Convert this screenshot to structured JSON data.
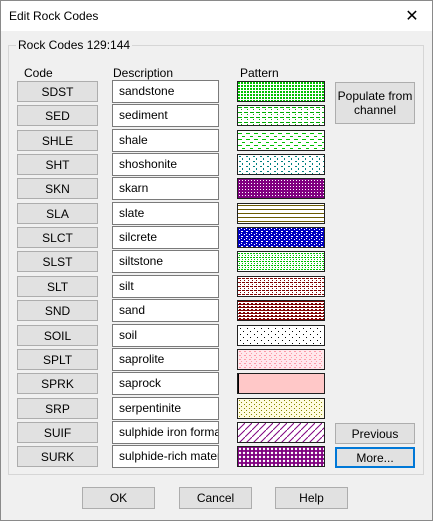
{
  "window": {
    "title": "Edit Rock Codes",
    "close_glyph": "✕"
  },
  "group": {
    "label": "Rock Codes 129:144"
  },
  "columns": {
    "code": "Code",
    "description": "Description",
    "pattern": "Pattern"
  },
  "rows": [
    {
      "code": "SDST",
      "description": "sandstone",
      "pattern": "dense-green",
      "color": "#00c000"
    },
    {
      "code": "SED",
      "description": "sediment",
      "pattern": "green-dash-lines",
      "color": "#00b000"
    },
    {
      "code": "SHLE",
      "description": "shale",
      "pattern": "green-dashes",
      "color": "#00c000"
    },
    {
      "code": "SHT",
      "description": "shoshonite",
      "pattern": "teal-dots",
      "color": "#008080"
    },
    {
      "code": "SKN",
      "description": "skarn",
      "pattern": "purple-dense",
      "color": "#800080"
    },
    {
      "code": "SLA",
      "description": "slate",
      "pattern": "olive-lines",
      "color": "#6b5a00"
    },
    {
      "code": "SLCT",
      "description": "silcrete",
      "pattern": "blue-speckle",
      "color": "#0000c0"
    },
    {
      "code": "SLST",
      "description": "siltstone",
      "pattern": "green-dotted",
      "color": "#00c000"
    },
    {
      "code": "SLT",
      "description": "silt",
      "pattern": "maroon-dotted",
      "color": "#800000"
    },
    {
      "code": "SND",
      "description": "sand",
      "pattern": "maroon-lines",
      "color": "#800000"
    },
    {
      "code": "SOIL",
      "description": "soil",
      "pattern": "sparse-dots",
      "color": "#000000"
    },
    {
      "code": "SPLT",
      "description": "saprolite",
      "pattern": "pink-dots",
      "color": "#ff9aa8"
    },
    {
      "code": "SPRK",
      "description": "saprock",
      "pattern": "pink-solid",
      "color": "#ffc8c8"
    },
    {
      "code": "SRP",
      "description": "serpentinite",
      "pattern": "olive-dots",
      "color": "#8a8a00"
    },
    {
      "code": "SUIF",
      "description": "sulphide iron formati",
      "pattern": "purple-diagonal",
      "color": "#800080"
    },
    {
      "code": "SURK",
      "description": "sulphide-rich materia",
      "pattern": "purple-circles",
      "color": "#800080"
    }
  ],
  "side_buttons": {
    "populate": "Populate from channel",
    "previous": "Previous",
    "more": "More..."
  },
  "footer": {
    "ok": "OK",
    "cancel": "Cancel",
    "help": "Help"
  }
}
